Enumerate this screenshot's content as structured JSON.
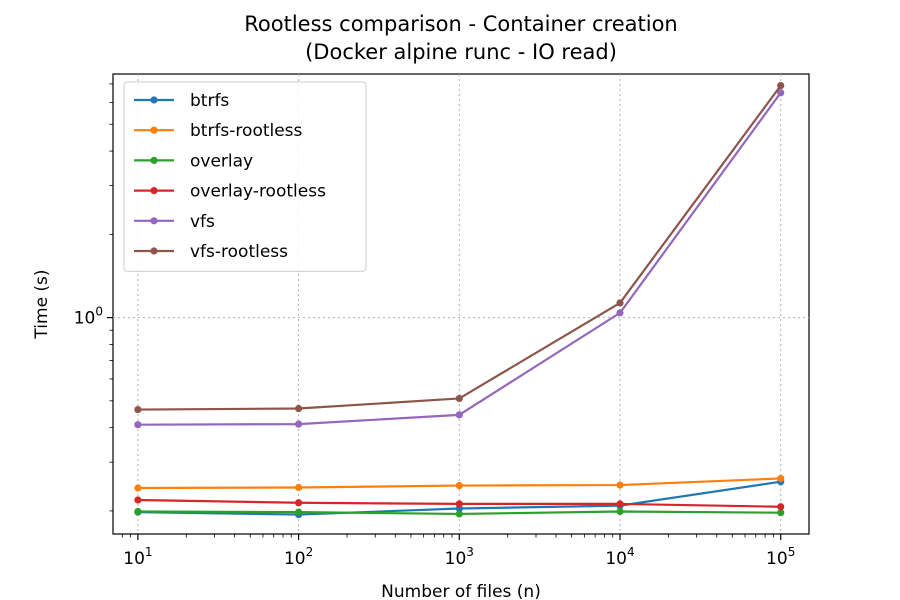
{
  "chart_data": {
    "type": "line",
    "title": "Rootless comparison - Container creation",
    "subtitle": "(Docker alpine runc - IO read)",
    "xlabel": "Number of files (n)",
    "ylabel": "Time (s)",
    "xscale": "log",
    "yscale": "log",
    "xlim": [
      7,
      150000
    ],
    "ylim": [
      0.165,
      7.6
    ],
    "grid": true,
    "legend_position": "top-left",
    "x": [
      10,
      100,
      1000,
      10000,
      100000
    ],
    "x_tick_labels": [
      {
        "value": 10,
        "base": "10",
        "exp": "1"
      },
      {
        "value": 100,
        "base": "10",
        "exp": "2"
      },
      {
        "value": 1000,
        "base": "10",
        "exp": "3"
      },
      {
        "value": 10000,
        "base": "10",
        "exp": "4"
      },
      {
        "value": 100000,
        "base": "10",
        "exp": "5"
      }
    ],
    "y_tick_labels": [
      {
        "value": 1,
        "base": "10",
        "exp": "0"
      }
    ],
    "series": [
      {
        "name": "btrfs",
        "color": "#1f77b4",
        "values": [
          0.198,
          0.194,
          0.204,
          0.209,
          0.255
        ]
      },
      {
        "name": "btrfs-rootless",
        "color": "#ff7f0e",
        "values": [
          0.242,
          0.243,
          0.247,
          0.248,
          0.262
        ]
      },
      {
        "name": "overlay",
        "color": "#2ca02c",
        "values": [
          0.199,
          0.198,
          0.195,
          0.199,
          0.197
        ]
      },
      {
        "name": "overlay-rootless",
        "color": "#d62728",
        "values": [
          0.219,
          0.214,
          0.212,
          0.212,
          0.207
        ]
      },
      {
        "name": "vfs",
        "color": "#9467bd",
        "values": [
          0.41,
          0.412,
          0.445,
          1.04,
          6.5
        ]
      },
      {
        "name": "vfs-rootless",
        "color": "#8c564b",
        "values": [
          0.465,
          0.469,
          0.51,
          1.13,
          6.9
        ]
      }
    ]
  }
}
